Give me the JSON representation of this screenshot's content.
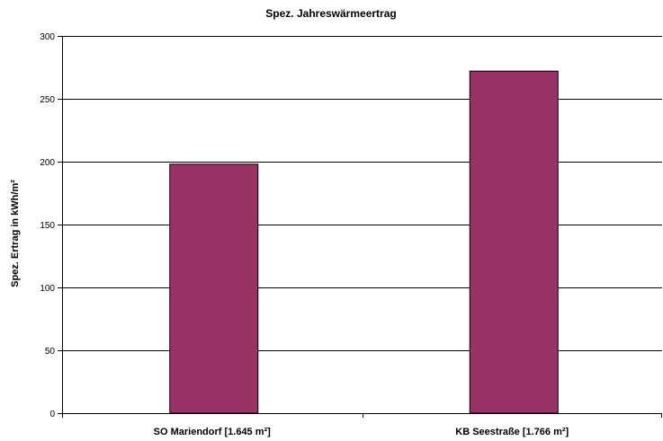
{
  "chart_data": {
    "type": "bar",
    "title": "Spez. Jahreswärmeertrag",
    "xlabel": "",
    "ylabel": "Spez. Ertrag in kWh/m²",
    "categories": [
      "SO Mariendorf [1.645 m²]",
      "KB Seestraße [1.766 m²]"
    ],
    "values": [
      198,
      272
    ],
    "ylim": [
      0,
      300
    ],
    "yticks": [
      0,
      50,
      100,
      150,
      200,
      250,
      300
    ],
    "grid": true,
    "legend": "none",
    "colors": {
      "bar": "#993366",
      "grid": "#000000"
    }
  }
}
